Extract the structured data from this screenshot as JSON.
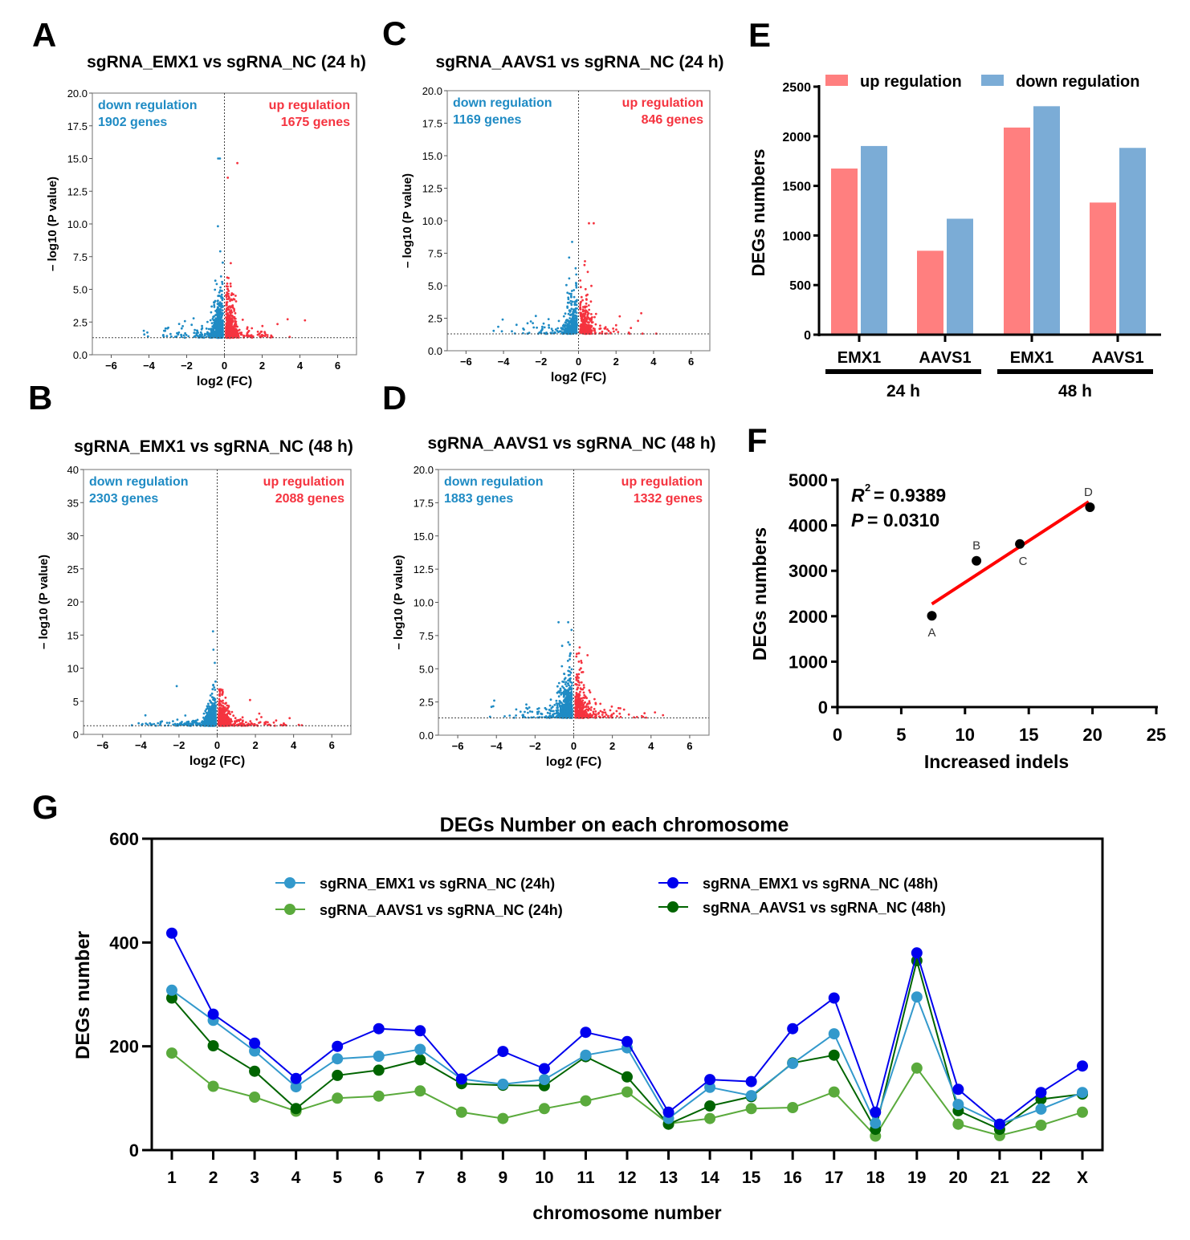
{
  "panel_letters": [
    "A",
    "B",
    "C",
    "D",
    "E",
    "F",
    "G"
  ],
  "colors": {
    "down": "#1f8bc4",
    "up": "#f5333f",
    "bar_up": "#ff7f7f",
    "bar_down": "#7bacd6",
    "fit_line": "#ff0000",
    "point": "#000000"
  },
  "chart_data": [
    {
      "panel": "A",
      "type": "scatter",
      "title": "sgRNA_EMX1 vs sgRNA_NC (24 h)",
      "xlabel": "log2 (FC)",
      "ylabel": "– log10 (P value)",
      "xlim": [
        -7,
        7
      ],
      "ylim": [
        0,
        20
      ],
      "x_ticks": [
        "−6",
        "−4",
        "−2",
        "0",
        "2",
        "4",
        "6"
      ],
      "y_ticks": [
        "0.0",
        "2.5",
        "5.0",
        "7.5",
        "10.0",
        "12.5",
        "15.0",
        "17.5",
        "20.0"
      ],
      "threshold_neglog10p": 1.3,
      "down_label": "down regulation",
      "down_count_label": "1902 genes",
      "up_label": "up regulation",
      "up_count_label": "1675 genes",
      "down_genes": 1902,
      "up_genes": 1675
    },
    {
      "panel": "B",
      "type": "scatter",
      "title": "sgRNA_EMX1 vs sgRNA_NC (48 h)",
      "xlabel": "log2 (FC)",
      "ylabel": "– log10 (P value)",
      "xlim": [
        -7,
        7
      ],
      "ylim": [
        0,
        40
      ],
      "x_ticks": [
        "−6",
        "−4",
        "−2",
        "0",
        "2",
        "4",
        "6"
      ],
      "y_ticks": [
        "0",
        "5",
        "10",
        "15",
        "20",
        "25",
        "30",
        "35",
        "40"
      ],
      "threshold_neglog10p": 1.3,
      "down_label": "down regulation",
      "down_count_label": "2303 genes",
      "up_label": "up regulation",
      "up_count_label": "2088 genes",
      "down_genes": 2303,
      "up_genes": 2088
    },
    {
      "panel": "C",
      "type": "scatter",
      "title": "sgRNA_AAVS1 vs sgRNA_NC (24 h)",
      "xlabel": "log2 (FC)",
      "ylabel": "– log10 (P value)",
      "xlim": [
        -7,
        7
      ],
      "ylim": [
        0,
        20
      ],
      "x_ticks": [
        "−6",
        "−4",
        "−2",
        "0",
        "2",
        "4",
        "6"
      ],
      "y_ticks": [
        "0.0",
        "2.5",
        "5.0",
        "7.5",
        "10.0",
        "12.5",
        "15.0",
        "17.5",
        "20.0"
      ],
      "threshold_neglog10p": 1.3,
      "down_label": "down regulation",
      "down_count_label": "1169 genes",
      "up_label": "up regulation",
      "up_count_label": "846 genes",
      "down_genes": 1169,
      "up_genes": 846
    },
    {
      "panel": "D",
      "type": "scatter",
      "title": "sgRNA_AAVS1 vs sgRNA_NC (48 h)",
      "xlabel": "log2 (FC)",
      "ylabel": "– log10 (P value)",
      "xlim": [
        -7,
        7
      ],
      "ylim": [
        0,
        20
      ],
      "x_ticks": [
        "−6",
        "−4",
        "−2",
        "0",
        "2",
        "4",
        "6"
      ],
      "y_ticks": [
        "0.0",
        "2.5",
        "5.0",
        "7.5",
        "10.0",
        "12.5",
        "15.0",
        "17.5",
        "20.0"
      ],
      "threshold_neglog10p": 1.3,
      "down_label": "down regulation",
      "down_count_label": "1883 genes",
      "up_label": "up regulation",
      "up_count_label": "1332 genes",
      "down_genes": 1883,
      "up_genes": 1332
    },
    {
      "panel": "E",
      "type": "bar",
      "ylabel": "DEGs numbers",
      "ylim": [
        0,
        2500
      ],
      "y_ticks": [
        "0",
        "500",
        "1000",
        "1500",
        "2000",
        "2500"
      ],
      "categories": [
        "EMX1",
        "AAVS1",
        "EMX1",
        "AAVS1"
      ],
      "groups": [
        "24 h",
        "48 h"
      ],
      "series": [
        {
          "name": "up regulation",
          "values": [
            1675,
            846,
            2088,
            1332
          ]
        },
        {
          "name": "down regulation",
          "values": [
            1902,
            1169,
            2303,
            1883
          ]
        }
      ],
      "legend": "top"
    },
    {
      "panel": "F",
      "type": "scatter",
      "xlabel": "Increased indels",
      "ylabel": "DEGs numbers",
      "xlim": [
        0,
        25
      ],
      "ylim": [
        0,
        5000
      ],
      "x_ticks": [
        "0",
        "5",
        "10",
        "15",
        "20",
        "25"
      ],
      "y_ticks": [
        "0",
        "1000",
        "2000",
        "3000",
        "4000",
        "5000"
      ],
      "points": [
        {
          "label": "A",
          "x": 7.4,
          "y": 2010
        },
        {
          "label": "B",
          "x": 10.9,
          "y": 3220
        },
        {
          "label": "C",
          "x": 14.3,
          "y": 3590
        },
        {
          "label": "D",
          "x": 19.8,
          "y": 4400
        }
      ],
      "fit_line": {
        "x": [
          7.4,
          19.7
        ],
        "y": [
          2270,
          4520
        ]
      },
      "r2_label": "R",
      "r2_sup": "2",
      "r2_value": "= 0.9389",
      "p_label": "P",
      "p_value": "= 0.0310"
    },
    {
      "panel": "G",
      "type": "line",
      "title": "DEGs Number on each chromosome",
      "xlabel": "chromosome number",
      "ylabel": "DEGs number",
      "ylim": [
        0,
        600
      ],
      "y_ticks": [
        "0",
        "200",
        "400",
        "600"
      ],
      "categories": [
        "1",
        "2",
        "3",
        "4",
        "5",
        "6",
        "7",
        "8",
        "9",
        "10",
        "11",
        "12",
        "13",
        "14",
        "15",
        "16",
        "17",
        "18",
        "19",
        "20",
        "21",
        "22",
        "X"
      ],
      "series": [
        {
          "name": "sgRNA_EMX1 vs sgRNA_NC (24h)",
          "color": "#3399cc",
          "values": [
            308,
            250,
            191,
            122,
            176,
            181,
            194,
            137,
            127,
            136,
            183,
            197,
            61,
            121,
            105,
            167,
            224,
            52,
            295,
            88,
            50,
            79,
            111
          ]
        },
        {
          "name": "sgRNA_AAVS1 vs sgRNA_NC (24h)",
          "color": "#5aaa3c",
          "values": [
            187,
            123,
            102,
            75,
            100,
            104,
            114,
            73,
            61,
            80,
            95,
            112,
            51,
            61,
            80,
            82,
            112,
            27,
            158,
            50,
            28,
            48,
            73
          ]
        },
        {
          "name": "sgRNA_EMX1 vs sgRNA_NC (48h)",
          "color": "#0000ee",
          "values": [
            418,
            262,
            206,
            138,
            200,
            234,
            230,
            137,
            190,
            157,
            227,
            209,
            73,
            136,
            132,
            234,
            293,
            73,
            380,
            117,
            50,
            111,
            162
          ]
        },
        {
          "name": "sgRNA_AAVS1 vs sgRNA_NC (48h)",
          "color": "#006400",
          "values": [
            293,
            201,
            152,
            80,
            144,
            154,
            174,
            128,
            125,
            124,
            180,
            141,
            50,
            85,
            103,
            168,
            183,
            40,
            365,
            76,
            40,
            98,
            108
          ]
        }
      ],
      "legend": "top-inside"
    }
  ]
}
